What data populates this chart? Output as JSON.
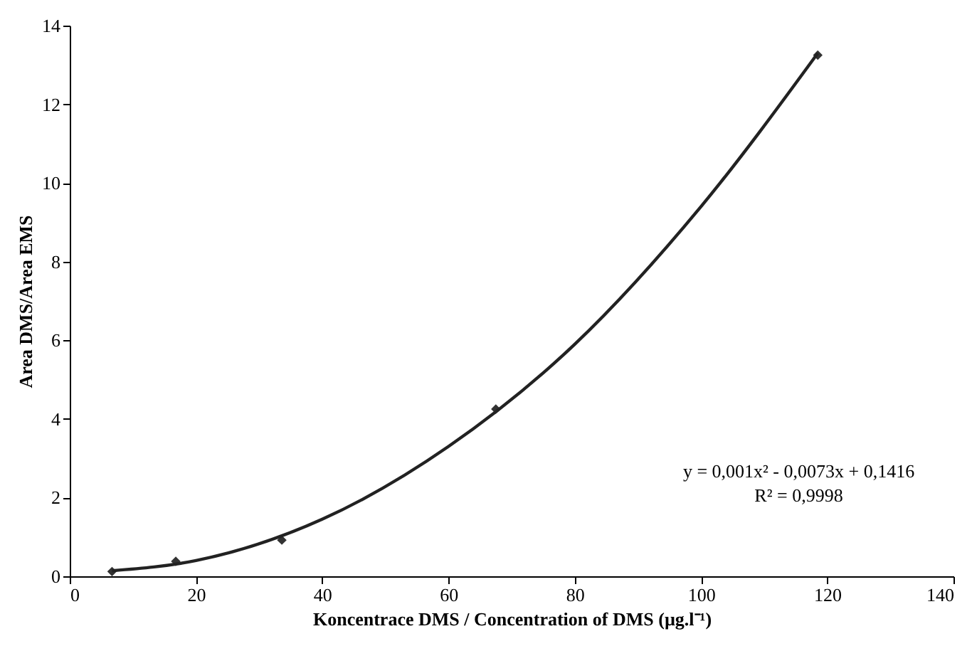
{
  "chart_data": {
    "type": "scatter",
    "xlabel": "Koncentrace DMS / Concentration of DMS (µg.l⁻¹)",
    "ylabel": "Area DMS/Area EMS",
    "series": [
      {
        "color": "#333333",
        "marker": "diamond",
        "x": [
          6.7,
          16.8,
          33.6,
          67.5,
          118.5
        ],
        "values": [
          0.12,
          0.38,
          0.92,
          4.25,
          13.25
        ]
      },
      {
        "type": "line",
        "color": "#222222",
        "marker": "none",
        "line_style": "solid",
        "x": [
          6.7,
          20,
          40,
          60,
          80,
          100,
          118.5
        ],
        "values": [
          0.14,
          0.4,
          1.45,
          3.3,
          5.9,
          9.4,
          13.3
        ]
      }
    ],
    "annotations": [
      "y = 0,001x² - 0,0073x + 0,1416",
      "R² = 0,9998"
    ],
    "xlim": [
      0,
      140
    ],
    "xticks": [
      0,
      20,
      40,
      60,
      80,
      100,
      120,
      140
    ],
    "ylim": [
      0,
      14
    ],
    "yticks": [
      0,
      2,
      4,
      6,
      8,
      10,
      12,
      14
    ],
    "grid": false
  }
}
